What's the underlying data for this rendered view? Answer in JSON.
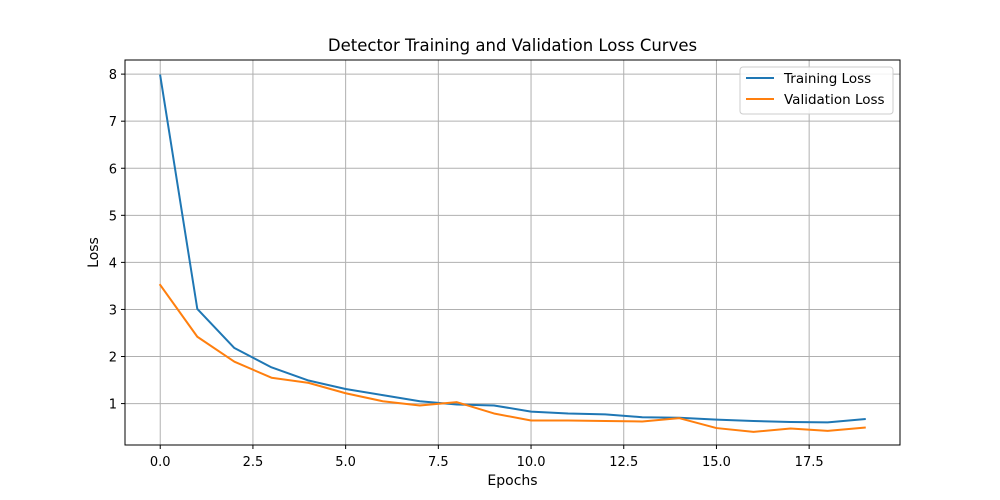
{
  "chart_data": {
    "type": "line",
    "title": "Detector Training and Validation Loss Curves",
    "xlabel": "Epochs",
    "ylabel": "Loss",
    "x": [
      0,
      1,
      2,
      3,
      4,
      5,
      6,
      7,
      8,
      9,
      10,
      11,
      12,
      13,
      14,
      15,
      16,
      17,
      18,
      19
    ],
    "xlim": [
      -0.95,
      19.95
    ],
    "ylim": [
      0.12,
      8.3
    ],
    "xticks": [
      0.0,
      2.5,
      5.0,
      7.5,
      10.0,
      12.5,
      15.0,
      17.5
    ],
    "xtick_labels": [
      "0.0",
      "2.5",
      "5.0",
      "7.5",
      "10.0",
      "12.5",
      "15.0",
      "17.5"
    ],
    "yticks": [
      1,
      2,
      3,
      4,
      5,
      6,
      7,
      8
    ],
    "ytick_labels": [
      "1",
      "2",
      "3",
      "4",
      "5",
      "6",
      "7",
      "8"
    ],
    "grid": true,
    "legend_position": "top-right",
    "series": [
      {
        "name": "Training Loss",
        "color": "#1f77b4",
        "values": [
          7.97,
          3.01,
          2.18,
          1.77,
          1.49,
          1.31,
          1.18,
          1.05,
          0.98,
          0.96,
          0.83,
          0.79,
          0.77,
          0.71,
          0.7,
          0.66,
          0.63,
          0.61,
          0.6,
          0.67
        ]
      },
      {
        "name": "Validation Loss",
        "color": "#ff7f0e",
        "values": [
          3.52,
          2.42,
          1.89,
          1.55,
          1.44,
          1.22,
          1.05,
          0.96,
          1.03,
          0.79,
          0.64,
          0.64,
          0.63,
          0.62,
          0.69,
          0.48,
          0.4,
          0.47,
          0.42,
          0.49
        ]
      }
    ]
  }
}
